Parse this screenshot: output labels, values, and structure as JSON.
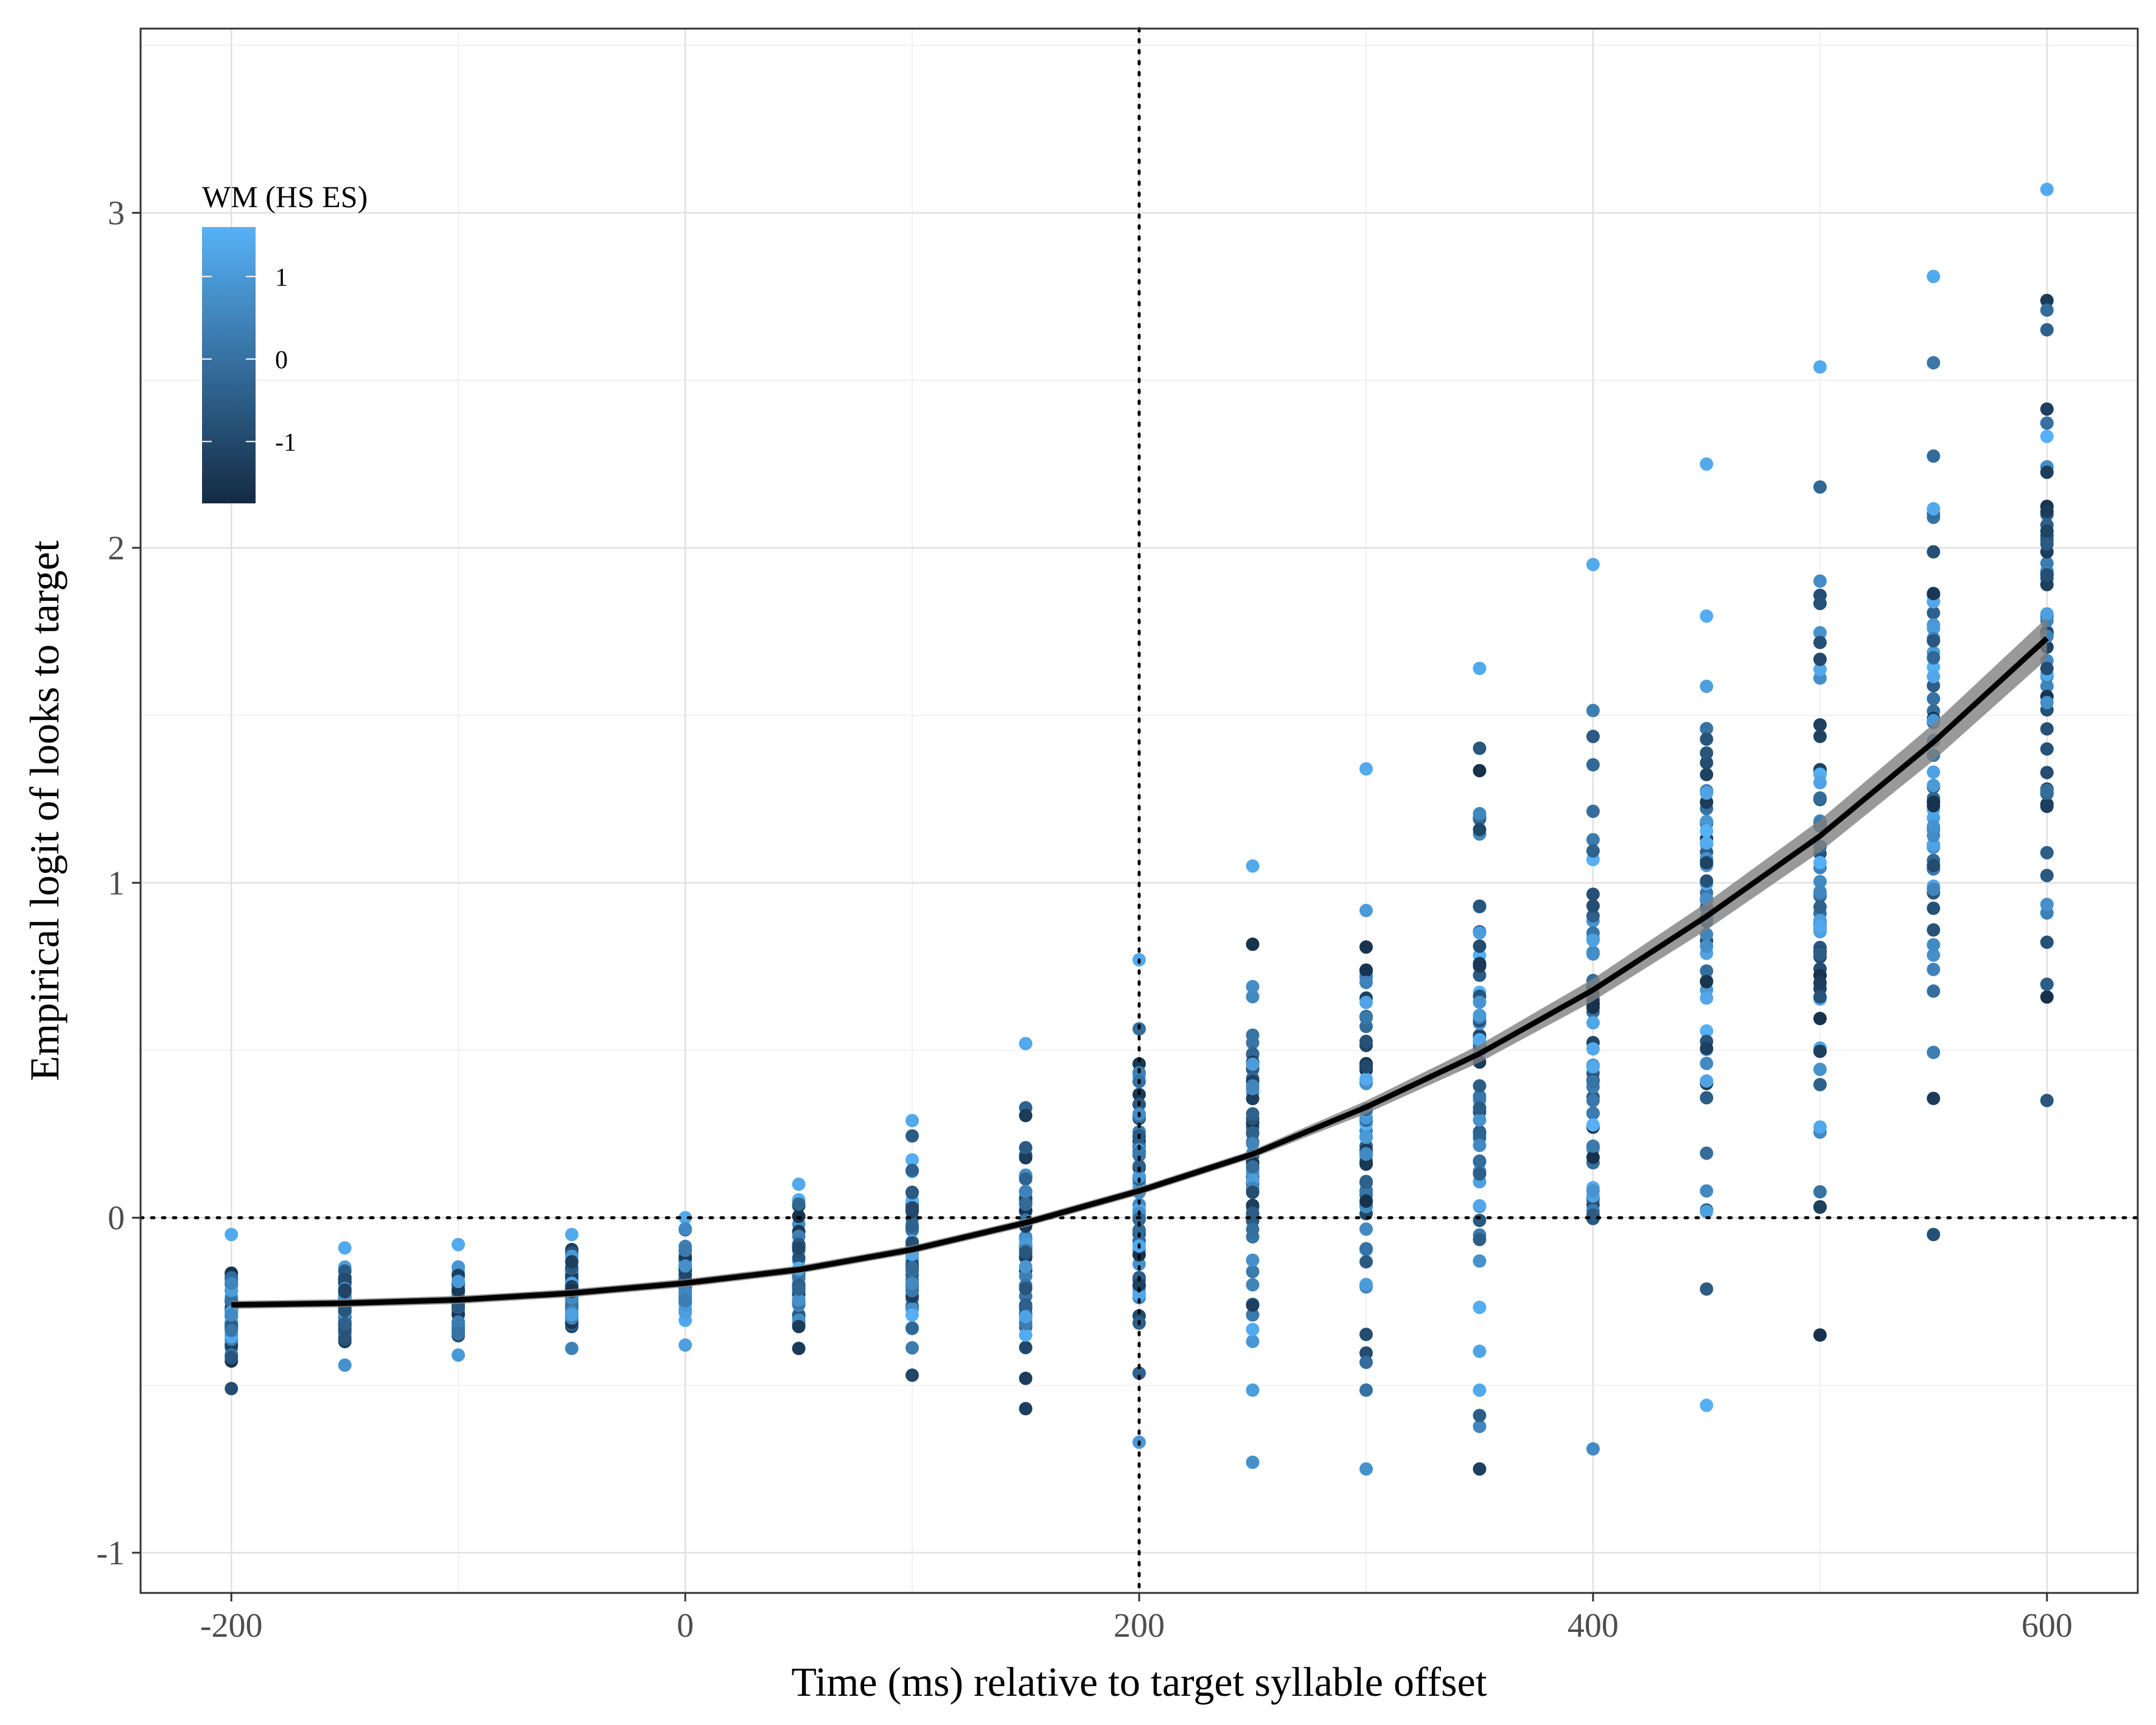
{
  "chart_data": {
    "type": "scatter",
    "xlabel": "Time (ms) relative to target syllable offset",
    "ylabel": "Empirical logit of looks to target",
    "xlim": [
      -240,
      640
    ],
    "ylim": [
      -1.12,
      3.55
    ],
    "x_ticks": [
      -200,
      0,
      200,
      400,
      600
    ],
    "x_tick_labels": [
      "-200",
      "0",
      "200",
      "400",
      "600"
    ],
    "y_ticks": [
      -1,
      0,
      1,
      2,
      3
    ],
    "y_tick_labels": [
      "-1",
      "0",
      "1",
      "2",
      "3"
    ],
    "grid": true,
    "reference_lines": [
      {
        "axis": "x",
        "value": 200,
        "style": "dotted"
      },
      {
        "axis": "y",
        "value": 0,
        "style": "dotted"
      }
    ],
    "legend": {
      "title": "WM (HS ES)",
      "placement": "top-left",
      "type": "colorbar",
      "range": [
        -1.75,
        1.6
      ],
      "ticks": [
        1,
        0,
        -1
      ],
      "tick_labels": [
        "1",
        "0",
        "-1"
      ],
      "color_low": "#132B43",
      "color_high": "#56B1F7"
    },
    "time_bins": [
      -200,
      -150,
      -100,
      -50,
      0,
      50,
      100,
      150,
      200,
      250,
      300,
      350,
      400,
      450,
      500,
      550,
      600
    ],
    "point_ranges": [
      {
        "x": -200,
        "min": -0.51,
        "max": -0.05
      },
      {
        "x": -150,
        "min": -0.44,
        "max": -0.09
      },
      {
        "x": -100,
        "min": -0.41,
        "max": -0.08
      },
      {
        "x": -50,
        "min": -0.39,
        "max": -0.05
      },
      {
        "x": 0,
        "min": -0.38,
        "max": 0.0
      },
      {
        "x": 50,
        "min": -0.39,
        "max": 0.1
      },
      {
        "x": 100,
        "min": -0.47,
        "max": 0.29
      },
      {
        "x": 150,
        "min": -0.57,
        "max": 0.52
      },
      {
        "x": 200,
        "min": -0.67,
        "max": 0.77
      },
      {
        "x": 250,
        "min": -0.73,
        "max": 1.05
      },
      {
        "x": 300,
        "min": -0.75,
        "max": 1.34
      },
      {
        "x": 350,
        "min": -0.75,
        "max": 1.64
      },
      {
        "x": 400,
        "min": -0.69,
        "max": 1.95
      },
      {
        "x": 450,
        "min": -0.56,
        "max": 2.25
      },
      {
        "x": 500,
        "min": -0.35,
        "max": 2.54
      },
      {
        "x": 550,
        "min": -0.05,
        "max": 2.81
      },
      {
        "x": 600,
        "min": 0.35,
        "max": 3.07
      }
    ],
    "fit_line": {
      "name": "",
      "color": "#000000",
      "ribbon_color": "#808080",
      "x": [
        -200,
        -150,
        -100,
        -50,
        0,
        50,
        100,
        150,
        200,
        250,
        300,
        350,
        400,
        450,
        500,
        550,
        600
      ],
      "y": [
        -0.26,
        -0.255,
        -0.245,
        -0.225,
        -0.195,
        -0.155,
        -0.095,
        -0.015,
        0.08,
        0.19,
        0.33,
        0.49,
        0.68,
        0.9,
        1.14,
        1.42,
        1.73
      ]
    }
  }
}
